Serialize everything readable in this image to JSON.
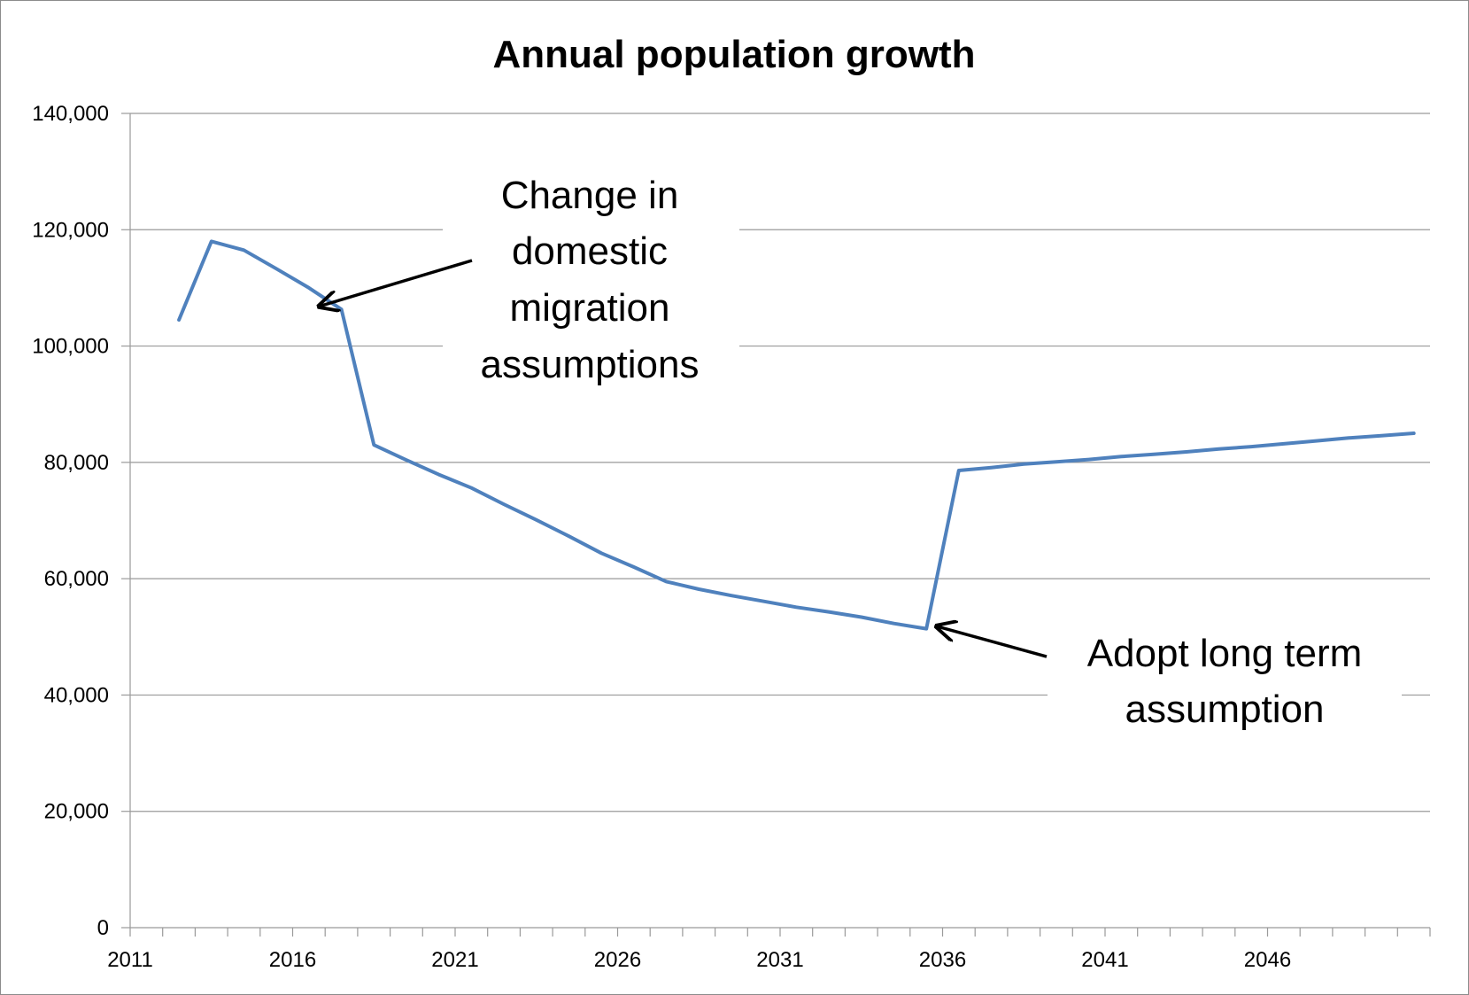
{
  "chart_data": {
    "type": "line",
    "title": "Annual population growth",
    "xlabel": "",
    "ylabel": "",
    "ylim": [
      0,
      140000
    ],
    "xlim": [
      2011,
      2051
    ],
    "grid": "horizontal",
    "legend": "none",
    "x_tick_labels": [
      "2011",
      "2016",
      "2021",
      "2026",
      "2031",
      "2036",
      "2041",
      "2046"
    ],
    "y_tick_labels": [
      "0",
      "20,000",
      "40,000",
      "60,000",
      "80,000",
      "100,000",
      "120,000",
      "140,000"
    ],
    "x_ticks": [
      2011,
      2016,
      2021,
      2026,
      2031,
      2036,
      2041,
      2046
    ],
    "y_ticks": [
      0,
      20000,
      40000,
      60000,
      80000,
      100000,
      120000,
      140000
    ],
    "series": [
      {
        "color": "#4f81bd",
        "x": [
          2012.5,
          2013.5,
          2014.5,
          2015.5,
          2016.5,
          2017.5,
          2018.5,
          2019.5,
          2020.5,
          2021.5,
          2022.5,
          2023.5,
          2024.5,
          2025.5,
          2026.5,
          2027.5,
          2028.5,
          2029.5,
          2030.5,
          2031.5,
          2032.5,
          2033.5,
          2034.5,
          2035.5,
          2036.5,
          2037.5,
          2038.5,
          2039.5,
          2040.5,
          2041.5,
          2042.5,
          2043.5,
          2044.5,
          2045.5,
          2046.5,
          2047.5,
          2048.5,
          2049.5,
          2050.5
        ],
        "values": [
          104500,
          118000,
          116500,
          113300,
          110000,
          106300,
          83000,
          80400,
          77900,
          75600,
          72800,
          70100,
          67300,
          64400,
          62000,
          59500,
          58200,
          57100,
          56100,
          55100,
          54300,
          53400,
          52300,
          51400,
          78600,
          79100,
          79700,
          80100,
          80500,
          81000,
          81400,
          81800,
          82300,
          82700,
          83200,
          83700,
          84200,
          84600,
          85000
        ]
      }
    ],
    "annotations": [
      {
        "lines": [
          "Change in",
          "domestic",
          "migration",
          "assumptions"
        ],
        "target_x": 2016.5,
        "target_y": 106300
      },
      {
        "lines": [
          "Adopt long term",
          "assumption"
        ],
        "target_x": 2035.5,
        "target_y": 52300
      }
    ]
  }
}
